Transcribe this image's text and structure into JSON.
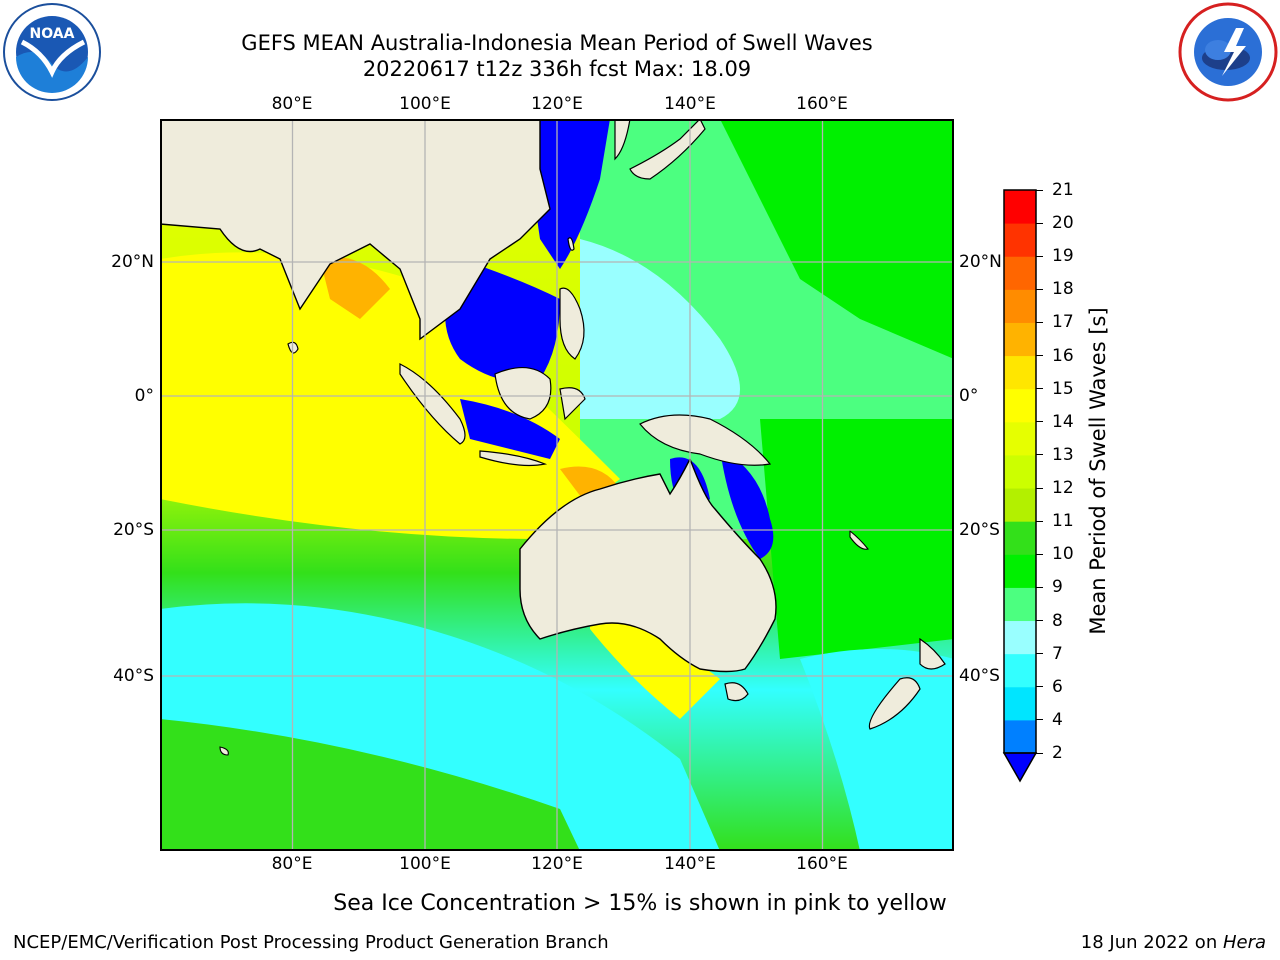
{
  "title": {
    "line1": "GEFS MEAN Australia-Indonesia Mean Period of Swell Waves",
    "line2": "20220617 t12z 336h fcst   Max: 18.09"
  },
  "logos": {
    "left": {
      "icon": "noaa-logo-icon",
      "text": "NOAA"
    },
    "right": {
      "icon": "national-weather-service-logo-icon"
    }
  },
  "map": {
    "lon_ticks": [
      "80°E",
      "100°E",
      "120°E",
      "140°E",
      "160°E"
    ],
    "lat_ticks_left": [
      "20°N",
      "0°",
      "20°S",
      "40°S"
    ],
    "lat_ticks_right": [
      "20°N",
      "0°",
      "20°S",
      "40°S"
    ],
    "colors": {
      "land": "#efecdc",
      "grid": "#b4b4b4",
      "coast": "#000000"
    }
  },
  "colorbar": {
    "label": "Mean Period of Swell Waves [s]",
    "ticks": [
      "2",
      "4",
      "6",
      "7",
      "8",
      "9",
      "10",
      "11",
      "12",
      "13",
      "14",
      "15",
      "16",
      "17",
      "18",
      "19",
      "20",
      "21"
    ],
    "colors": [
      "#0080ff",
      "#00e5ff",
      "#33ffff",
      "#99ffff",
      "#4cff80",
      "#00f000",
      "#33e01a",
      "#b3f000",
      "#ccff00",
      "#e6ff00",
      "#ffff00",
      "#ffe600",
      "#ffb300",
      "#ff8c00",
      "#ff6600",
      "#ff3300",
      "#ff0000"
    ],
    "under_color": "#0000ff"
  },
  "note": "Sea Ice Concentration > 15% is shown in pink to yellow",
  "footer": {
    "left": "NCEP/EMC/Verification Post Processing Product Generation Branch",
    "date": "18 Jun 2022 on ",
    "machine": "Hera"
  }
}
